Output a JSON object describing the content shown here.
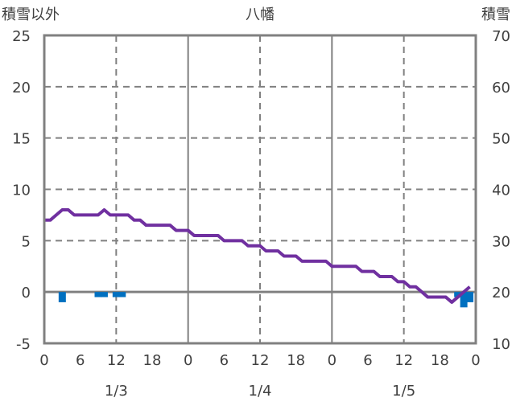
{
  "chart_data": {
    "type": "line",
    "title": "八幡",
    "left_axis_label": "積雪以外",
    "right_axis_label": "積雪",
    "left_ylim": [
      -5,
      25
    ],
    "right_ylim": [
      10,
      70
    ],
    "left_ticks": [
      25,
      20,
      15,
      10,
      5,
      0,
      -5
    ],
    "right_ticks": [
      70,
      60,
      50,
      40,
      30,
      20,
      10
    ],
    "x_hour_range": [
      0,
      72
    ],
    "x_tick_labels": [
      "0",
      "6",
      "12",
      "18",
      "0",
      "6",
      "12",
      "18",
      "0",
      "6",
      "12",
      "18",
      "0"
    ],
    "date_labels": [
      {
        "hour": 12,
        "label": "1/3"
      },
      {
        "hour": 36,
        "label": "1/4"
      },
      {
        "hour": 60,
        "label": "1/5"
      }
    ],
    "grid": true,
    "colors": {
      "line": "#7030A0",
      "bars": "#0070C0",
      "grid": "#808080"
    },
    "series": [
      {
        "name": "積雪",
        "axis": "right",
        "type": "line",
        "hours": [
          0,
          1,
          2,
          3,
          4,
          5,
          6,
          7,
          8,
          9,
          10,
          11,
          12,
          13,
          14,
          15,
          16,
          17,
          18,
          19,
          20,
          21,
          22,
          23,
          24,
          25,
          26,
          27,
          28,
          29,
          30,
          31,
          32,
          33,
          34,
          35,
          36,
          37,
          38,
          39,
          40,
          41,
          42,
          43,
          44,
          45,
          46,
          47,
          48,
          49,
          50,
          51,
          52,
          53,
          54,
          55,
          56,
          57,
          58,
          59,
          60,
          61,
          62,
          63,
          64,
          65,
          66,
          67,
          68,
          69,
          70,
          71
        ],
        "values": [
          34,
          34,
          35,
          36,
          36,
          35,
          35,
          35,
          35,
          35,
          36,
          35,
          35,
          35,
          35,
          34,
          34,
          33,
          33,
          33,
          33,
          33,
          32,
          32,
          32,
          31,
          31,
          31,
          31,
          31,
          30,
          30,
          30,
          30,
          29,
          29,
          29,
          28,
          28,
          28,
          27,
          27,
          27,
          26,
          26,
          26,
          26,
          26,
          25,
          25,
          25,
          25,
          25,
          24,
          24,
          24,
          23,
          23,
          23,
          22,
          22,
          21,
          21,
          20,
          19,
          19,
          19,
          19,
          18,
          19,
          20,
          21
        ]
      },
      {
        "name": "積雪以外",
        "axis": "left",
        "type": "bar",
        "hours": [
          3,
          9,
          10,
          12,
          13,
          69,
          70,
          71
        ],
        "values": [
          -1.0,
          -0.5,
          -0.5,
          -0.5,
          -0.5,
          -0.5,
          -1.5,
          -1.0
        ]
      }
    ]
  }
}
